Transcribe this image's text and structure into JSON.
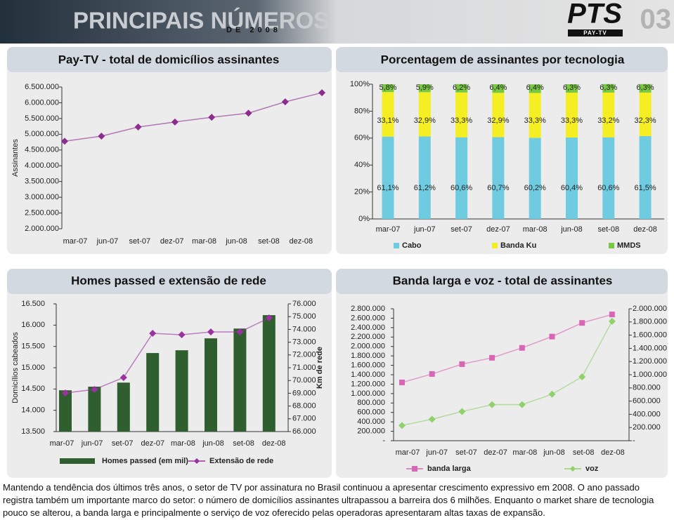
{
  "header": {
    "title": "PRINCIPAIS NÚMEROS",
    "subtitle": "DE 2008",
    "page": "03",
    "logo": "PTS",
    "logo_tagline": "PAY-TV"
  },
  "chart_data": [
    {
      "type": "line",
      "title": "Pay-TV - total de domicílios assinantes",
      "ylabel": "Assinantes",
      "categories": [
        "mar-07",
        "jun-07",
        "set-07",
        "dez-07",
        "mar-08",
        "jun-08",
        "set-08",
        "dez-08"
      ],
      "values": [
        4780000,
        4940000,
        5230000,
        5390000,
        5540000,
        5670000,
        6030000,
        6320000
      ],
      "color": "#8b2c8e",
      "marker": "diamond",
      "ylim": [
        2000000,
        6500000
      ],
      "yticks": [
        {
          "value": 2000000,
          "label": "2.000.000"
        },
        {
          "value": 2500000,
          "label": "2.500.000"
        },
        {
          "value": 3000000,
          "label": "3.000.000"
        },
        {
          "value": 3500000,
          "label": "3.500.000"
        },
        {
          "value": 4000000,
          "label": "4.000.000"
        },
        {
          "value": 4500000,
          "label": "4.500.000"
        },
        {
          "value": 5000000,
          "label": "5.000.000"
        },
        {
          "value": 5500000,
          "label": "5.500.000"
        },
        {
          "value": 6000000,
          "label": "6.000.000"
        },
        {
          "value": 6500000,
          "label": "6.500.000"
        }
      ]
    },
    {
      "type": "stacked_bar",
      "title": "Porcentagem de assinantes por tecnologia",
      "categories": [
        "mar-07",
        "jun-07",
        "set-07",
        "dez-07",
        "mar-08",
        "jun-08",
        "set-08",
        "dez-08"
      ],
      "series": [
        {
          "name": "Cabo",
          "color": "#6fcbe0",
          "values": [
            61.1,
            61.2,
            60.6,
            60.7,
            60.2,
            60.4,
            60.6,
            61.5
          ],
          "value_labels": [
            "61,1%",
            "61,2%",
            "60,6%",
            "60,7%",
            "60,2%",
            "60,4%",
            "60,6%",
            "61,5%"
          ]
        },
        {
          "name": "Banda Ku",
          "color": "#f4ee22",
          "values": [
            33.1,
            32.9,
            33.3,
            32.9,
            33.3,
            33.3,
            33.2,
            32.3
          ],
          "value_labels": [
            "33,1%",
            "32,9%",
            "33,3%",
            "32,9%",
            "33,3%",
            "33,3%",
            "33,2%",
            "32,3%"
          ]
        },
        {
          "name": "MMDS",
          "color": "#79c843",
          "values": [
            5.8,
            5.9,
            6.2,
            6.4,
            6.4,
            6.3,
            6.3,
            6.3
          ],
          "value_labels": [
            "5,8%",
            "5,9%",
            "6,2%",
            "6,4%",
            "6,4%",
            "6,3%",
            "6,3%",
            "6,3%"
          ]
        }
      ],
      "ylim": [
        0,
        100
      ],
      "yticks": [
        {
          "value": 0,
          "label": "0%"
        },
        {
          "value": 20,
          "label": "20%"
        },
        {
          "value": 40,
          "label": "40%"
        },
        {
          "value": 60,
          "label": "60%"
        },
        {
          "value": 80,
          "label": "80%"
        },
        {
          "value": 100,
          "label": "100%"
        }
      ],
      "legend": "bottom"
    },
    {
      "type": "combo",
      "title": "Homes passed e extensão de rede",
      "ylabel": "Domicílios cabeados",
      "y2label": "Km de rede",
      "categories": [
        "mar-07",
        "jun-07",
        "set-07",
        "dez-07",
        "mar-08",
        "jun-08",
        "set-08",
        "dez-08"
      ],
      "series": [
        {
          "name": "Homes passed (em mil)",
          "type": "bar",
          "color": "#2f5f2f",
          "values": [
            14470,
            14555,
            14650,
            15345,
            15410,
            15690,
            15920,
            16235
          ]
        },
        {
          "name": "Extensão de rede",
          "type": "line",
          "axis": "y2",
          "color": "#9933a0",
          "marker": "diamond",
          "values": [
            69020,
            69300,
            70230,
            73690,
            73580,
            73800,
            73800,
            74900
          ]
        }
      ],
      "ylim": [
        13500,
        16500
      ],
      "yticks": [
        {
          "value": 13500,
          "label": "13.500"
        },
        {
          "value": 14000,
          "label": "14.000"
        },
        {
          "value": 14500,
          "label": "14.500"
        },
        {
          "value": 15000,
          "label": "15.000"
        },
        {
          "value": 15500,
          "label": "15.500"
        },
        {
          "value": 16000,
          "label": "16.000"
        },
        {
          "value": 16500,
          "label": "16.500"
        }
      ],
      "y2lim": [
        66000,
        76000
      ],
      "y2ticks": [
        {
          "value": 66000,
          "label": "66.000"
        },
        {
          "value": 67000,
          "label": "67.000"
        },
        {
          "value": 68000,
          "label": "68.000"
        },
        {
          "value": 69000,
          "label": "69.000"
        },
        {
          "value": 70000,
          "label": "70.000"
        },
        {
          "value": 71000,
          "label": "71.000"
        },
        {
          "value": 72000,
          "label": "72.000"
        },
        {
          "value": 73000,
          "label": "73.000"
        },
        {
          "value": 74000,
          "label": "74.000"
        },
        {
          "value": 75000,
          "label": "75.000"
        },
        {
          "value": 76000,
          "label": "76.000"
        }
      ],
      "legend": "bottom"
    },
    {
      "type": "line",
      "title": "Banda larga e voz - total de assinantes",
      "categories": [
        "mar-07",
        "jun-07",
        "set-07",
        "dez-07",
        "mar-08",
        "jun-08",
        "set-08",
        "dez-08"
      ],
      "series": [
        {
          "name": "banda larga",
          "color": "#d966b5",
          "marker": "square",
          "values": [
            1237000,
            1416000,
            1625000,
            1760000,
            1970000,
            2210000,
            2500000,
            2680000
          ]
        },
        {
          "name": "voz",
          "axis": "y2",
          "color": "#8fd16a",
          "marker": "diamond",
          "values": [
            232000,
            326000,
            442000,
            547000,
            547000,
            705000,
            968000,
            1810000
          ]
        }
      ],
      "ylim": [
        0,
        2800000
      ],
      "yticks": [
        {
          "value": 0,
          "label": "-"
        },
        {
          "value": 200000,
          "label": "200.000"
        },
        {
          "value": 400000,
          "label": "400.000"
        },
        {
          "value": 600000,
          "label": "600.000"
        },
        {
          "value": 800000,
          "label": "800.000"
        },
        {
          "value": 1000000,
          "label": "1.000.000"
        },
        {
          "value": 1200000,
          "label": "1.200.000"
        },
        {
          "value": 1400000,
          "label": "1.400.000"
        },
        {
          "value": 1600000,
          "label": "1.600.000"
        },
        {
          "value": 1800000,
          "label": "1.800.000"
        },
        {
          "value": 2000000,
          "label": "2.000.000"
        },
        {
          "value": 2200000,
          "label": "2.200.000"
        },
        {
          "value": 2400000,
          "label": "2.400.000"
        },
        {
          "value": 2600000,
          "label": "2.600.000"
        },
        {
          "value": 2800000,
          "label": "2.800.000"
        }
      ],
      "y2lim": [
        0,
        2000000
      ],
      "y2ticks": [
        {
          "value": 0,
          "label": "-"
        },
        {
          "value": 200000,
          "label": "200.000"
        },
        {
          "value": 400000,
          "label": "400.000"
        },
        {
          "value": 600000,
          "label": "600.000"
        },
        {
          "value": 800000,
          "label": "800.000"
        },
        {
          "value": 1000000,
          "label": "1.000.000"
        },
        {
          "value": 1200000,
          "label": "1.200.000"
        },
        {
          "value": 1400000,
          "label": "1.400.000"
        },
        {
          "value": 1600000,
          "label": "1.600.000"
        },
        {
          "value": 1800000,
          "label": "1.800.000"
        },
        {
          "value": 2000000,
          "label": "2.000.000"
        }
      ],
      "legend": "bottom"
    }
  ],
  "footer": {
    "text": "Mantendo a tendência dos últimos três anos, o setor de TV por assinatura no Brasil continuou a apresentar crescimento expressivo em 2008. O ano passado registra também um importante marco do setor: o número de domicílios assinantes ultrapassou a barreira dos 6 milhões. Enquanto o market share de tecnologia pouco se alterou, a banda larga e principalmente o serviço de voz oferecido pelas operadoras apresentaram altas taxas de expansão."
  }
}
